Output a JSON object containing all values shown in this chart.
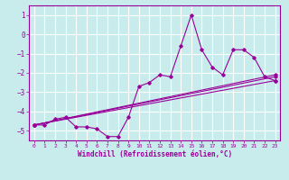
{
  "xlabel": "Windchill (Refroidissement éolien,°C)",
  "background_color": "#c8ecec",
  "grid_color": "#ffffff",
  "line_color": "#990099",
  "xlim": [
    -0.5,
    23.5
  ],
  "ylim": [
    -5.5,
    1.5
  ],
  "yticks": [
    1,
    0,
    -1,
    -2,
    -3,
    -4,
    -5
  ],
  "xticks": [
    0,
    1,
    2,
    3,
    4,
    5,
    6,
    7,
    8,
    9,
    10,
    11,
    12,
    13,
    14,
    15,
    16,
    17,
    18,
    19,
    20,
    21,
    22,
    23
  ],
  "series": [
    {
      "x": [
        0,
        1,
        2,
        3,
        4,
        5,
        6,
        7,
        8,
        9,
        10,
        11,
        12,
        13,
        14,
        15,
        16,
        17,
        18,
        19,
        20,
        21,
        22,
        23
      ],
      "y": [
        -4.7,
        -4.7,
        -4.4,
        -4.3,
        -4.8,
        -4.8,
        -4.9,
        -5.3,
        -5.3,
        -4.3,
        -2.7,
        -2.5,
        -2.1,
        -2.2,
        -0.6,
        1.0,
        -0.8,
        -1.7,
        -2.1,
        -0.8,
        -0.8,
        -1.2,
        -2.2,
        -2.4
      ]
    },
    {
      "x": [
        0,
        23
      ],
      "y": [
        -4.7,
        -2.2
      ]
    },
    {
      "x": [
        0,
        23
      ],
      "y": [
        -4.7,
        -2.4
      ]
    },
    {
      "x": [
        0,
        23
      ],
      "y": [
        -4.7,
        -2.1
      ]
    }
  ]
}
